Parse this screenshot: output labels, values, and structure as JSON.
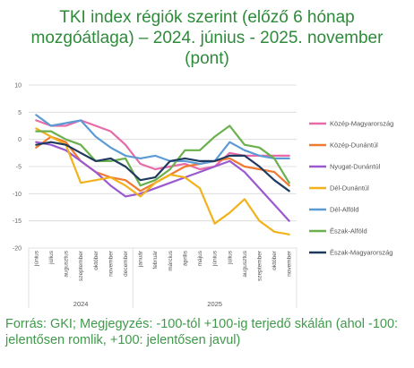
{
  "title": {
    "line1": "TKI index régiók szerint (előző 6 hónap",
    "line2": "mozgóátlaga) – 2024. június - 2025. november",
    "line3": "(pont)"
  },
  "footer": "Forrás: GKI; Megjegyzés: -100-tól +100-ig terjedő skálán (ahol -100: jelentősen romlik, +100: jelentősen javul)",
  "chart_data": {
    "type": "line",
    "ylim": [
      -20,
      10
    ],
    "yticks": [
      10,
      5,
      0,
      -5,
      -10,
      -15,
      -20
    ],
    "grid": true,
    "legend_position": "right",
    "x": [
      "június",
      "július",
      "augusztus",
      "szeptember",
      "október",
      "november",
      "december",
      "január",
      "február",
      "március",
      "április",
      "május",
      "június",
      "július",
      "augusztus",
      "szeptember",
      "október",
      "november"
    ],
    "year_groups": [
      {
        "label": "2024",
        "start": 0,
        "end": 6
      },
      {
        "label": "2025",
        "start": 7,
        "end": 17
      }
    ],
    "series": [
      {
        "name": "Közép-Magyarország",
        "color": "#e86aa8",
        "values": [
          3.5,
          2.5,
          2.5,
          3.5,
          2.5,
          1.5,
          -1.0,
          -4.5,
          -5.5,
          -5.0,
          -4.5,
          -5.5,
          -5.0,
          -2.5,
          -3.0,
          -3.0,
          -3.0,
          -3.0
        ]
      },
      {
        "name": "Közép-Dunántúl",
        "color": "#f07a30",
        "values": [
          -1.5,
          0.5,
          -0.5,
          -4.0,
          -6.0,
          -7.0,
          -7.5,
          -9.5,
          -8.0,
          -6.5,
          -5.0,
          -4.5,
          -4.0,
          -3.5,
          -5.0,
          -5.5,
          -6.0,
          -8.5
        ]
      },
      {
        "name": "Nyugat-Dunántúl",
        "color": "#9b59d0",
        "values": [
          -0.5,
          -1.0,
          -2.0,
          -4.0,
          -6.0,
          -8.5,
          -10.5,
          -10.0,
          -9.0,
          -8.0,
          -7.0,
          -6.0,
          -5.0,
          -4.0,
          -6.0,
          -9.0,
          -12.0,
          -15.0
        ]
      },
      {
        "name": "Dél-Dunántúl",
        "color": "#f2b21c",
        "values": [
          2.0,
          0.5,
          -1.0,
          -8.0,
          -7.5,
          -7.0,
          -8.5,
          -10.5,
          -8.0,
          -6.5,
          -7.0,
          -9.0,
          -15.5,
          -13.5,
          -11.0,
          -15.0,
          -17.0,
          -17.5
        ]
      },
      {
        "name": "Dél-Alföld",
        "color": "#5b9bd5",
        "values": [
          4.5,
          2.5,
          3.0,
          3.5,
          0.5,
          -1.5,
          -3.0,
          -3.5,
          -3.0,
          -4.0,
          -4.0,
          -4.5,
          -4.0,
          -0.5,
          -2.0,
          -3.0,
          -3.5,
          -3.5
        ]
      },
      {
        "name": "Észak-Alföld",
        "color": "#6ab04c",
        "values": [
          1.5,
          1.5,
          0.0,
          -1.0,
          -4.0,
          -4.0,
          -3.5,
          -8.5,
          -7.5,
          -5.5,
          -2.0,
          -2.0,
          0.5,
          2.5,
          -1.0,
          -1.5,
          -3.5,
          -8.0
        ]
      },
      {
        "name": "Észak-Magyarország",
        "color": "#1f3a5f",
        "values": [
          -1.0,
          -0.5,
          -1.0,
          -2.5,
          -4.0,
          -3.5,
          -5.0,
          -7.5,
          -7.0,
          -4.0,
          -3.5,
          -4.0,
          -4.0,
          -3.0,
          -3.0,
          -5.0,
          -7.5,
          -9.5
        ]
      }
    ]
  }
}
